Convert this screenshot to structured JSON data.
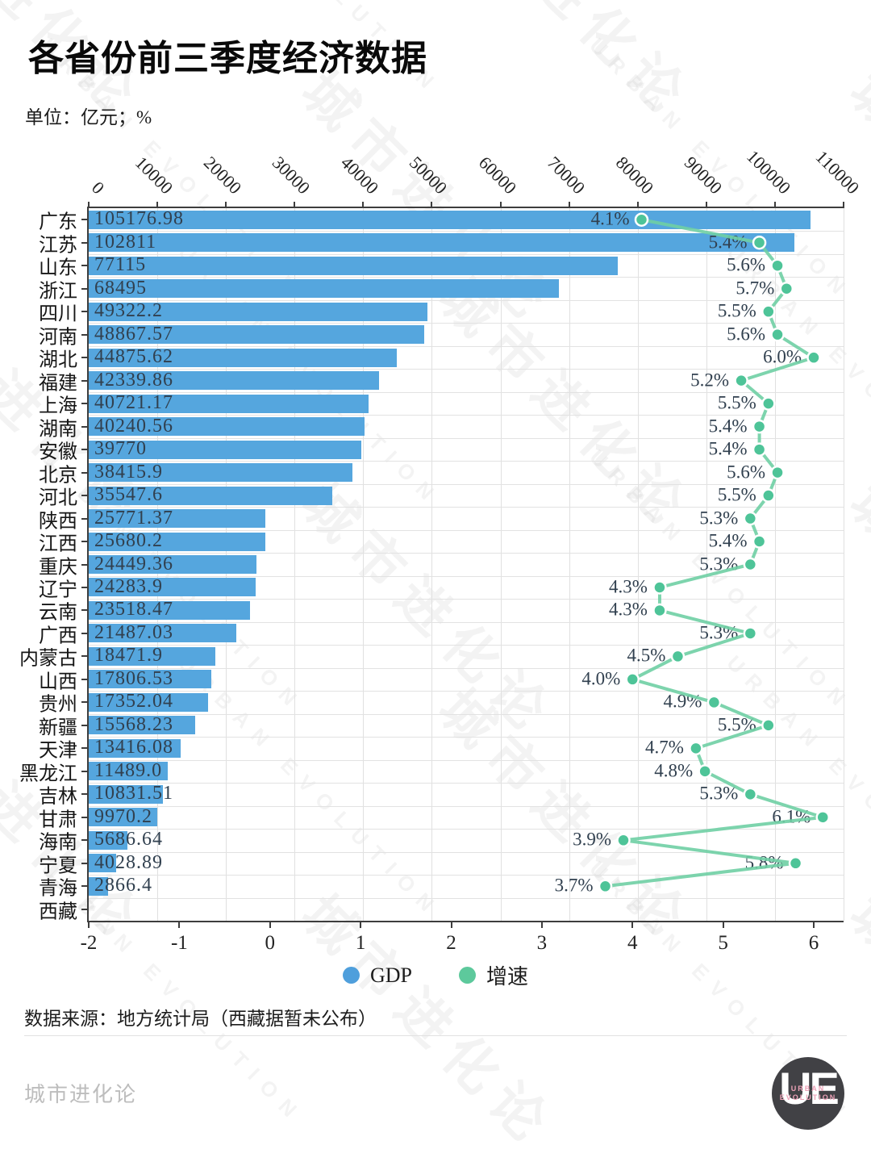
{
  "title": "各省份前三季度经济数据",
  "subtitle": "单位：亿元；%",
  "source_note": "数据来源：地方统计局（西藏据暂未公布）",
  "footer": {
    "brand": "城市进化论",
    "logo_text": "UE",
    "logo_sub_line1": "URBAN",
    "logo_sub_line2": "EVOLUTION"
  },
  "watermark": {
    "cn": "城市进化论",
    "en": "URBAN EVOLUTION"
  },
  "colors": {
    "bar": "#55a6de",
    "line": "#6fcfa4",
    "marker": "#4ec498",
    "label_text": "#31404f",
    "axis": "#3d3d3d",
    "grid": "#e0e0e0"
  },
  "chart_data": {
    "type": "bar",
    "subtype": "horizontal bars (GDP, top axis) + line with markers (growth %, bottom axis)",
    "title": "各省份前三季度经济数据",
    "unit_note": "单位：亿元；%",
    "categories": [
      "广东",
      "江苏",
      "山东",
      "浙江",
      "四川",
      "河南",
      "湖北",
      "福建",
      "上海",
      "湖南",
      "安徽",
      "北京",
      "河北",
      "陕西",
      "江西",
      "重庆",
      "辽宁",
      "云南",
      "广西",
      "内蒙古",
      "山西",
      "贵州",
      "新疆",
      "天津",
      "黑龙江",
      "吉林",
      "甘肃",
      "海南",
      "宁夏",
      "青海",
      "西藏"
    ],
    "series": [
      {
        "name": "GDP",
        "type": "bar",
        "color": "#55a6de",
        "values": [
          105176.98,
          102811,
          77115,
          68495,
          49322.2,
          48867.57,
          44875.62,
          42339.86,
          40721.17,
          40240.56,
          39770,
          38415.9,
          35547.6,
          25771.37,
          25680.2,
          24449.36,
          24283.9,
          23518.47,
          21487.03,
          18471.9,
          17806.53,
          17352.04,
          15568.23,
          13416.08,
          11489.0,
          10831.51,
          9970.2,
          5686.64,
          4028.89,
          2866.4,
          null
        ],
        "labels": [
          "105176.98",
          "102811",
          "77115",
          "68495",
          "49322.2",
          "48867.57",
          "44875.62",
          "42339.86",
          "40721.17",
          "40240.56",
          "39770",
          "38415.9",
          "35547.6",
          "25771.37",
          "25680.2",
          "24449.36",
          "24283.9",
          "23518.47",
          "21487.03",
          "18471.9",
          "17806.53",
          "17352.04",
          "15568.23",
          "13416.08",
          "11489.0",
          "10831.51",
          "9970.2",
          "5686.64",
          "4028.89",
          "2866.4",
          null
        ]
      },
      {
        "name": "增速",
        "type": "line",
        "color": "#5dc99c",
        "values": [
          4.1,
          5.4,
          5.6,
          5.7,
          5.5,
          5.6,
          6.0,
          5.2,
          5.5,
          5.4,
          5.4,
          5.6,
          5.5,
          5.3,
          5.4,
          5.3,
          4.3,
          4.3,
          5.3,
          4.5,
          4.0,
          4.9,
          5.5,
          4.7,
          4.8,
          5.3,
          6.1,
          3.9,
          5.8,
          3.7,
          null
        ],
        "labels": [
          "4.1%",
          "5.4%",
          "5.6%",
          "5.7%",
          "5.5%",
          "5.6%",
          "6.0%",
          "5.2%",
          "5.5%",
          "5.4%",
          "5.4%",
          "5.6%",
          "5.5%",
          "5.3%",
          "5.4%",
          "5.3%",
          "4.3%",
          "4.3%",
          "5.3%",
          "4.5%",
          "4.0%",
          "4.9%",
          "5.5%",
          "4.7%",
          "4.8%",
          "5.3%",
          "6.1%",
          "3.9%",
          "5.8%",
          "3.7%",
          null
        ]
      }
    ],
    "x_top_axis": {
      "min": 0,
      "max": 110000,
      "tick_labels": [
        "0",
        "10000",
        "20000",
        "30000",
        "40000",
        "50000",
        "60000",
        "70000",
        "80000",
        "90000",
        "100000",
        "110000"
      ],
      "rotation": 45
    },
    "x_bottom_axis": {
      "min": -2,
      "max": 6,
      "tick_labels": [
        "-2",
        "-1",
        "0",
        "1",
        "2",
        "3",
        "4",
        "5",
        "6"
      ]
    },
    "legend": {
      "position": "bottom",
      "entries": [
        "GDP",
        "增速"
      ]
    },
    "grid": {
      "vertical": "at top-axis ticks",
      "horizontal": "at row boundaries"
    }
  }
}
